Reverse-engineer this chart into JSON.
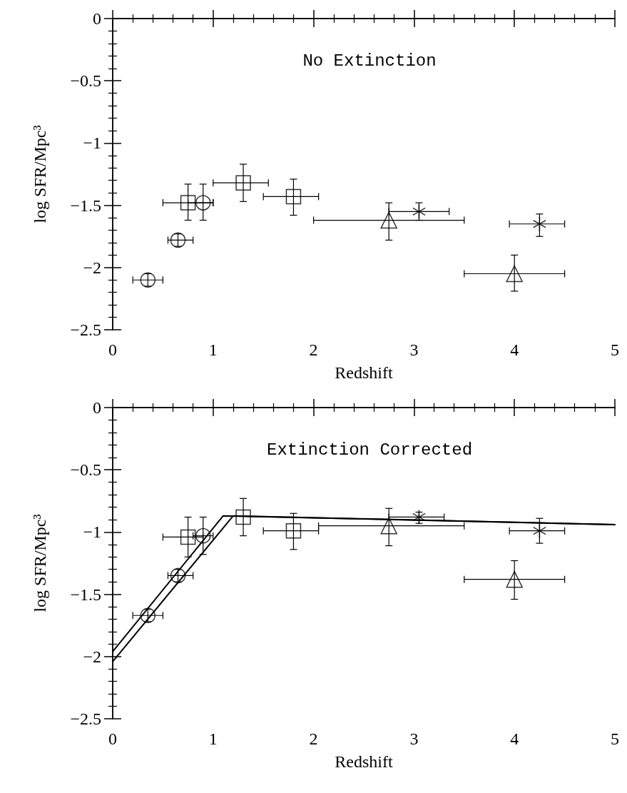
{
  "chart_data": [
    {
      "type": "scatter",
      "title": "No Extinction",
      "xlabel": "Redshift",
      "ylabel": "log SFR/Mpc³",
      "xlim": [
        0,
        5
      ],
      "xticks": [
        0,
        1,
        2,
        3,
        4,
        5
      ],
      "ylim": [
        -2.5,
        0
      ],
      "yticks": [
        -2.5,
        -2,
        -1.5,
        -1,
        -0.5,
        0
      ],
      "grid": false,
      "series": [
        {
          "marker": "circle",
          "color": "#000000",
          "x": [
            0.35,
            0.65,
            0.9
          ],
          "values": [
            -2.1,
            -1.78,
            -1.48
          ],
          "errors": [
            [
              -2.15,
              -2.05
            ],
            [
              -1.83,
              -1.73
            ],
            [
              -1.62,
              -1.33
            ]
          ],
          "xerrors": [
            [
              0.2,
              0.5
            ],
            [
              0.55,
              0.8
            ],
            [
              0.75,
              1.0
            ]
          ]
        },
        {
          "marker": "square",
          "color": "#000000",
          "x": [
            0.75,
            1.3,
            1.8
          ],
          "values": [
            -1.48,
            -1.32,
            -1.43
          ],
          "errors": [
            [
              -1.62,
              -1.33
            ],
            [
              -1.47,
              -1.17
            ],
            [
              -1.58,
              -1.29
            ]
          ],
          "xerrors": [
            [
              0.5,
              1.0
            ],
            [
              1.0,
              1.55
            ],
            [
              1.5,
              2.05
            ]
          ]
        },
        {
          "marker": "triangle",
          "color": "#000000",
          "x": [
            2.75,
            4.0
          ],
          "values": [
            -1.62,
            -2.05
          ],
          "errors": [
            [
              -1.78,
              -1.48
            ],
            [
              -2.19,
              -1.9
            ]
          ],
          "xerrors": [
            [
              2.0,
              3.5
            ],
            [
              3.5,
              4.5
            ]
          ]
        },
        {
          "marker": "cross",
          "color": "#000000",
          "x": [
            3.05,
            4.25
          ],
          "values": [
            -1.55,
            -1.65
          ],
          "errors": [
            [
              -1.62,
              -1.48
            ],
            [
              -1.75,
              -1.57
            ]
          ],
          "xerrors": [
            [
              2.75,
              3.35
            ],
            [
              3.95,
              4.5
            ]
          ]
        }
      ]
    },
    {
      "type": "scatter",
      "title": "Extinction Corrected",
      "xlabel": "Redshift",
      "ylabel": "log SFR/Mpc³",
      "xlim": [
        0,
        5
      ],
      "xticks": [
        0,
        1,
        2,
        3,
        4,
        5
      ],
      "ylim": [
        -2.5,
        0
      ],
      "yticks": [
        -2.5,
        -2,
        -1.5,
        -1,
        -0.5,
        0
      ],
      "grid": false,
      "series": [
        {
          "marker": "circle",
          "color": "#000000",
          "x": [
            0.35,
            0.65,
            0.9
          ],
          "values": [
            -1.67,
            -1.35,
            -1.03
          ],
          "errors": [
            [
              -1.72,
              -1.62
            ],
            [
              -1.4,
              -1.3
            ],
            [
              -1.18,
              -0.88
            ]
          ],
          "xerrors": [
            [
              0.2,
              0.5
            ],
            [
              0.55,
              0.8
            ],
            [
              0.8,
              1.0
            ]
          ]
        },
        {
          "marker": "square",
          "color": "#000000",
          "x": [
            0.75,
            1.3,
            1.8
          ],
          "values": [
            -1.04,
            -0.88,
            -0.99
          ],
          "errors": [
            [
              -1.2,
              -0.88
            ],
            [
              -1.03,
              -0.73
            ],
            [
              -1.14,
              -0.85
            ]
          ],
          "xerrors": [
            [
              0.5,
              0.9
            ],
            null,
            [
              1.5,
              2.05
            ]
          ]
        },
        {
          "marker": "triangle",
          "color": "#000000",
          "x": [
            2.75,
            4.0
          ],
          "values": [
            -0.95,
            -1.38
          ],
          "errors": [
            [
              -1.11,
              -0.81
            ],
            [
              -1.54,
              -1.23
            ]
          ],
          "xerrors": [
            [
              2.05,
              3.5
            ],
            [
              3.5,
              4.5
            ]
          ]
        },
        {
          "marker": "cross",
          "color": "#000000",
          "x": [
            3.05,
            4.25
          ],
          "values": [
            -0.88,
            -0.99
          ],
          "errors": [
            [
              -0.93,
              -0.84
            ],
            [
              -1.09,
              -0.89
            ]
          ],
          "xerrors": [
            [
              2.75,
              3.3
            ],
            [
              3.95,
              4.5
            ]
          ]
        },
        {
          "type": "line",
          "marker": "none",
          "line_style": "solid",
          "color": "#000000",
          "x": [
            0,
            1.1,
            5
          ],
          "values": [
            -1.96,
            -0.87,
            -0.94
          ]
        },
        {
          "type": "line",
          "marker": "none",
          "line_style": "solid",
          "color": "#000000",
          "x": [
            0,
            1.2,
            5
          ],
          "values": [
            -2.04,
            -0.87,
            -0.94
          ]
        }
      ]
    }
  ]
}
